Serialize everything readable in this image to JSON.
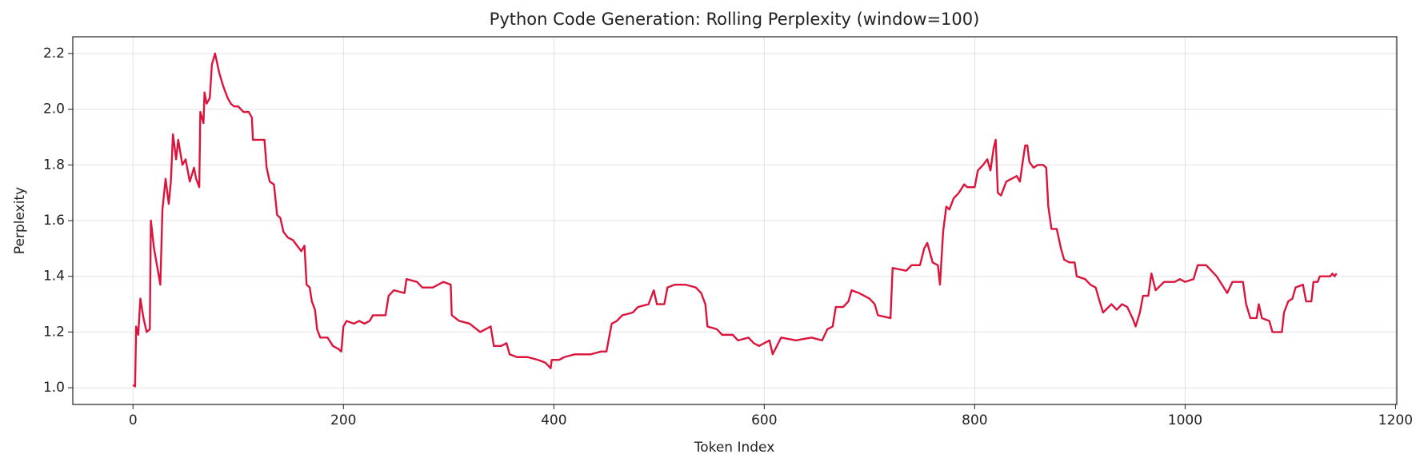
{
  "chart_data": {
    "type": "line",
    "title": "Python Code Generation: Rolling Perplexity (window=100)",
    "x_label": "Token Index",
    "y_label": "Perplexity",
    "color": "#dc143c",
    "grid": true,
    "xlim": [
      -57.2,
      1201.2
    ],
    "ylim": [
      0.94,
      2.26
    ],
    "xticks": [
      0,
      200,
      400,
      600,
      800,
      1000,
      1200
    ],
    "yticks": [
      {
        "value": 1,
        "label": "1.0"
      },
      1.2,
      1.4,
      1.6,
      1.8,
      {
        "value": 2,
        "label": "2.0"
      },
      2.2
    ],
    "x": [
      0,
      2,
      3,
      5,
      7,
      10,
      13,
      16,
      17,
      20,
      26,
      28,
      31,
      34,
      36,
      38,
      41,
      43,
      47,
      50,
      54,
      58,
      60,
      63,
      64,
      67,
      68,
      70,
      73,
      75,
      78,
      82,
      86,
      90,
      93,
      96,
      100,
      105,
      110,
      113,
      114,
      120,
      125,
      127,
      130,
      134,
      137,
      140,
      143,
      147,
      152,
      156,
      160,
      163,
      165,
      168,
      170,
      173,
      175,
      178,
      185,
      190,
      195,
      198,
      200,
      203,
      210,
      215,
      220,
      225,
      228,
      240,
      243,
      248,
      258,
      260,
      270,
      275,
      285,
      290,
      295,
      302,
      303,
      310,
      320,
      330,
      340,
      343,
      350,
      355,
      358,
      365,
      375,
      385,
      392,
      397,
      398,
      405,
      410,
      420,
      435,
      445,
      450,
      455,
      460,
      465,
      475,
      480,
      490,
      495,
      498,
      505,
      508,
      515,
      525,
      535,
      540,
      544,
      546,
      555,
      560,
      570,
      575,
      585,
      590,
      595,
      600,
      605,
      608,
      612,
      616,
      630,
      645,
      655,
      660,
      665,
      668,
      675,
      680,
      683,
      690,
      700,
      705,
      708,
      720,
      722,
      735,
      740,
      748,
      752,
      755,
      760,
      765,
      767,
      770,
      773,
      776,
      780,
      785,
      790,
      793,
      800,
      803,
      808,
      812,
      815,
      818,
      820,
      822,
      825,
      830,
      835,
      840,
      843,
      846,
      848,
      850,
      852,
      856,
      860,
      865,
      868,
      870,
      873,
      878,
      882,
      885,
      890,
      895,
      897,
      905,
      910,
      915,
      918,
      922,
      930,
      935,
      940,
      945,
      950,
      953,
      957,
      960,
      965,
      968,
      972,
      980,
      990,
      995,
      1000,
      1008,
      1012,
      1020,
      1025,
      1030,
      1035,
      1040,
      1045,
      1055,
      1058,
      1062,
      1068,
      1070,
      1073,
      1080,
      1083,
      1092,
      1094,
      1098,
      1102,
      1105,
      1112,
      1115,
      1120,
      1122,
      1126,
      1128,
      1138,
      1140,
      1142,
      1144
    ],
    "values": [
      1.01,
      1.005,
      1.22,
      1.19,
      1.32,
      1.25,
      1.2,
      1.21,
      1.6,
      1.5,
      1.37,
      1.64,
      1.75,
      1.66,
      1.74,
      1.91,
      1.82,
      1.89,
      1.8,
      1.82,
      1.74,
      1.79,
      1.75,
      1.72,
      1.99,
      1.95,
      2.06,
      2.02,
      2.04,
      2.16,
      2.2,
      2.13,
      2.08,
      2.04,
      2.02,
      2.01,
      2.01,
      1.99,
      1.99,
      1.97,
      1.89,
      1.89,
      1.89,
      1.79,
      1.74,
      1.73,
      1.62,
      1.61,
      1.56,
      1.54,
      1.53,
      1.51,
      1.49,
      1.51,
      1.37,
      1.36,
      1.31,
      1.28,
      1.21,
      1.18,
      1.18,
      1.15,
      1.14,
      1.13,
      1.22,
      1.24,
      1.23,
      1.24,
      1.23,
      1.24,
      1.26,
      1.26,
      1.33,
      1.35,
      1.34,
      1.39,
      1.38,
      1.36,
      1.36,
      1.37,
      1.38,
      1.37,
      1.26,
      1.24,
      1.23,
      1.2,
      1.22,
      1.15,
      1.15,
      1.16,
      1.12,
      1.11,
      1.11,
      1.1,
      1.09,
      1.07,
      1.1,
      1.1,
      1.11,
      1.12,
      1.12,
      1.13,
      1.13,
      1.23,
      1.24,
      1.26,
      1.27,
      1.29,
      1.3,
      1.35,
      1.3,
      1.3,
      1.36,
      1.37,
      1.37,
      1.36,
      1.34,
      1.3,
      1.22,
      1.21,
      1.19,
      1.19,
      1.17,
      1.18,
      1.16,
      1.15,
      1.16,
      1.17,
      1.12,
      1.15,
      1.18,
      1.17,
      1.18,
      1.17,
      1.21,
      1.22,
      1.29,
      1.29,
      1.31,
      1.35,
      1.34,
      1.32,
      1.3,
      1.26,
      1.25,
      1.43,
      1.42,
      1.44,
      1.44,
      1.5,
      1.52,
      1.45,
      1.44,
      1.37,
      1.56,
      1.65,
      1.64,
      1.68,
      1.7,
      1.73,
      1.72,
      1.72,
      1.78,
      1.8,
      1.82,
      1.78,
      1.86,
      1.89,
      1.7,
      1.69,
      1.74,
      1.75,
      1.76,
      1.74,
      1.82,
      1.87,
      1.87,
      1.81,
      1.79,
      1.8,
      1.8,
      1.79,
      1.65,
      1.57,
      1.57,
      1.5,
      1.46,
      1.45,
      1.45,
      1.4,
      1.39,
      1.37,
      1.36,
      1.32,
      1.27,
      1.3,
      1.28,
      1.3,
      1.29,
      1.25,
      1.22,
      1.27,
      1.33,
      1.33,
      1.41,
      1.35,
      1.38,
      1.38,
      1.39,
      1.38,
      1.39,
      1.44,
      1.44,
      1.42,
      1.4,
      1.37,
      1.34,
      1.38,
      1.38,
      1.3,
      1.25,
      1.25,
      1.3,
      1.25,
      1.24,
      1.2,
      1.2,
      1.27,
      1.31,
      1.32,
      1.36,
      1.37,
      1.31,
      1.31,
      1.38,
      1.38,
      1.4,
      1.4,
      1.41,
      1.4,
      1.41
    ]
  }
}
